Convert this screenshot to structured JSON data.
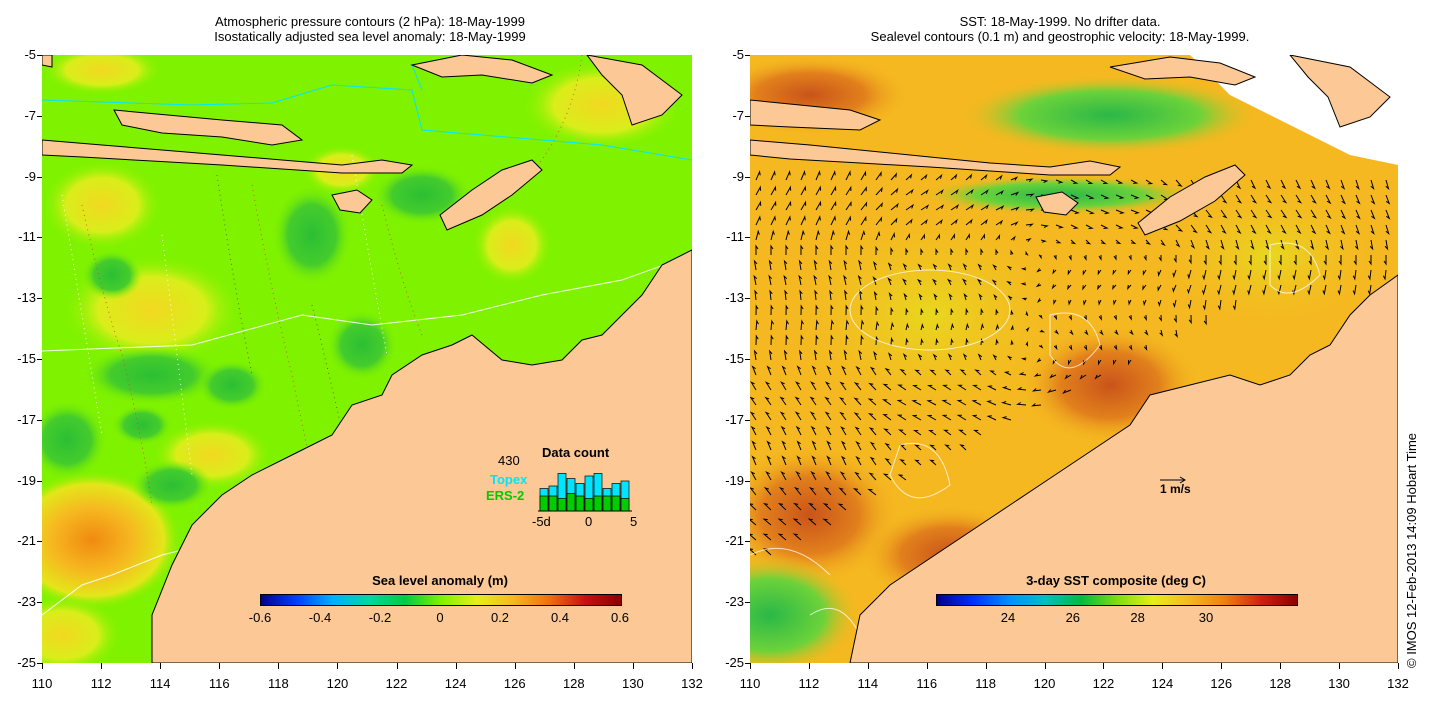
{
  "left": {
    "title_line1": "Atmospheric pressure contours (2 hPa): 18-May-1999",
    "title_line2": "Isostatically adjusted sea level anomaly: 18-May-1999",
    "colorbar_title": "Sea level anomaly (m)",
    "colorbar_labels": [
      "-0.6",
      "-0.4",
      "-0.2",
      "0",
      "0.2",
      "0.4",
      "0.6"
    ],
    "data_count": {
      "title": "Data count",
      "count": "430",
      "topex_label": "Topex",
      "ers_label": "ERS-2",
      "axis_labels": [
        "-5d",
        "0",
        "5"
      ],
      "topex_values": [
        0.45,
        0.5,
        0.75,
        0.65,
        0.55,
        0.7,
        0.75,
        0.45,
        0.55,
        0.6
      ],
      "ers_values": [
        0.3,
        0.3,
        0.25,
        0.35,
        0.3,
        0.25,
        0.3,
        0.3,
        0.3,
        0.25
      ],
      "topex_color": "#00e5ff",
      "ers_color": "#00cc00"
    }
  },
  "right": {
    "title_line1": "SST: 18-May-1999. No drifter data.",
    "title_line2": "Sealevel contours (0.1 m) and geostrophic velocity: 18-May-1999.",
    "colorbar_title": "3-day SST composite (deg C)",
    "colorbar_labels": [
      "24",
      "26",
      "28",
      "30"
    ],
    "scale_label": "1 m/s"
  },
  "axes": {
    "y_labels": [
      "-5",
      "-7",
      "-9",
      "-11",
      "-13",
      "-15",
      "-17",
      "-19",
      "-21",
      "-23",
      "-25"
    ],
    "x_labels": [
      "110",
      "112",
      "114",
      "116",
      "118",
      "120",
      "122",
      "124",
      "126",
      "128",
      "130",
      "132"
    ]
  },
  "credit": "© IMOS 12-Feb-2013 14:09 Hobart Time",
  "colors": {
    "land": "#fcc896",
    "ocean_anomaly_base": "#7ff200",
    "sst_base": "#f5b820"
  }
}
